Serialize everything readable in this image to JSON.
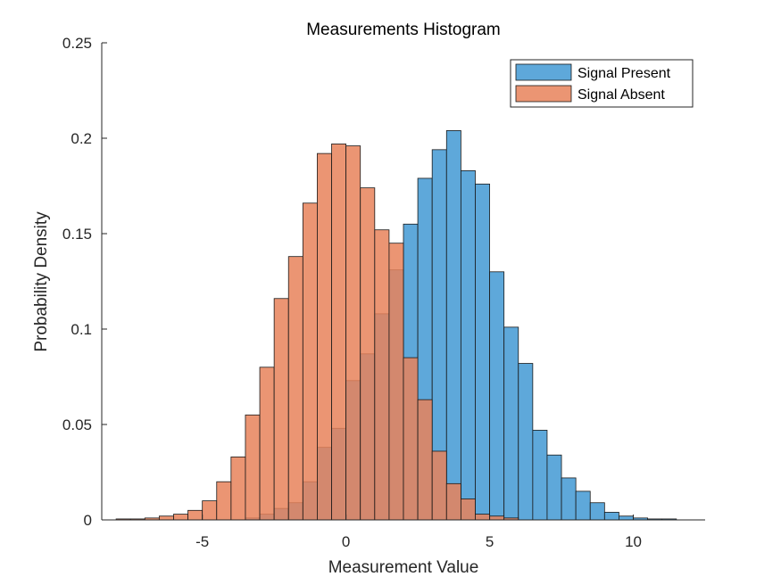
{
  "chart_data": {
    "type": "bar",
    "subtype": "overlapping-histogram",
    "title": "Measurements Histogram",
    "xlabel": "Measurement Value",
    "ylabel": "Probability Density",
    "xlim": [
      -8.5,
      12.5
    ],
    "ylim": [
      0,
      0.25
    ],
    "xticks": [
      -5,
      0,
      5,
      10
    ],
    "yticks": [
      0,
      0.05,
      0.1,
      0.15,
      0.2,
      0.25
    ],
    "xtick_labels": [
      "-5",
      "0",
      "5",
      "10"
    ],
    "ytick_labels": [
      "0",
      "0.05",
      "0.1",
      "0.15",
      "0.2",
      "0.25"
    ],
    "grid": false,
    "legend_position": "top-right",
    "series": [
      {
        "name": "Signal Present",
        "color": "#4d9ed6",
        "opacity": 0.9,
        "bin_edges": [
          -3.5,
          -3.0,
          -2.5,
          -2.0,
          -1.5,
          -1.0,
          -0.5,
          0.0,
          0.5,
          1.0,
          1.5,
          2.0,
          2.5,
          3.0,
          3.5,
          4.0,
          4.5,
          5.0,
          5.5,
          6.0,
          6.5,
          7.0,
          7.5,
          8.0,
          8.5,
          9.0,
          9.5,
          10.0,
          10.5,
          11.0,
          11.5
        ],
        "values": [
          0.001,
          0.003,
          0.006,
          0.009,
          0.02,
          0.038,
          0.048,
          0.073,
          0.087,
          0.108,
          0.131,
          0.155,
          0.179,
          0.194,
          0.204,
          0.183,
          0.176,
          0.13,
          0.101,
          0.082,
          0.047,
          0.034,
          0.022,
          0.015,
          0.009,
          0.004,
          0.002,
          0.001,
          0.0005,
          0.0005
        ]
      },
      {
        "name": "Signal Absent",
        "color": "#e8825a",
        "opacity": 0.85,
        "bin_edges": [
          -8.0,
          -7.5,
          -7.0,
          -6.5,
          -6.0,
          -5.5,
          -5.0,
          -4.5,
          -4.0,
          -3.5,
          -3.0,
          -2.5,
          -2.0,
          -1.5,
          -1.0,
          -0.5,
          0.0,
          0.5,
          1.0,
          1.5,
          2.0,
          2.5,
          3.0,
          3.5,
          4.0,
          4.5,
          5.0,
          5.5,
          6.0
        ],
        "values": [
          0.0005,
          0.0005,
          0.001,
          0.002,
          0.003,
          0.005,
          0.01,
          0.02,
          0.033,
          0.055,
          0.08,
          0.116,
          0.138,
          0.166,
          0.192,
          0.197,
          0.196,
          0.174,
          0.152,
          0.145,
          0.085,
          0.063,
          0.036,
          0.019,
          0.011,
          0.003,
          0.002,
          0.001
        ]
      }
    ]
  }
}
